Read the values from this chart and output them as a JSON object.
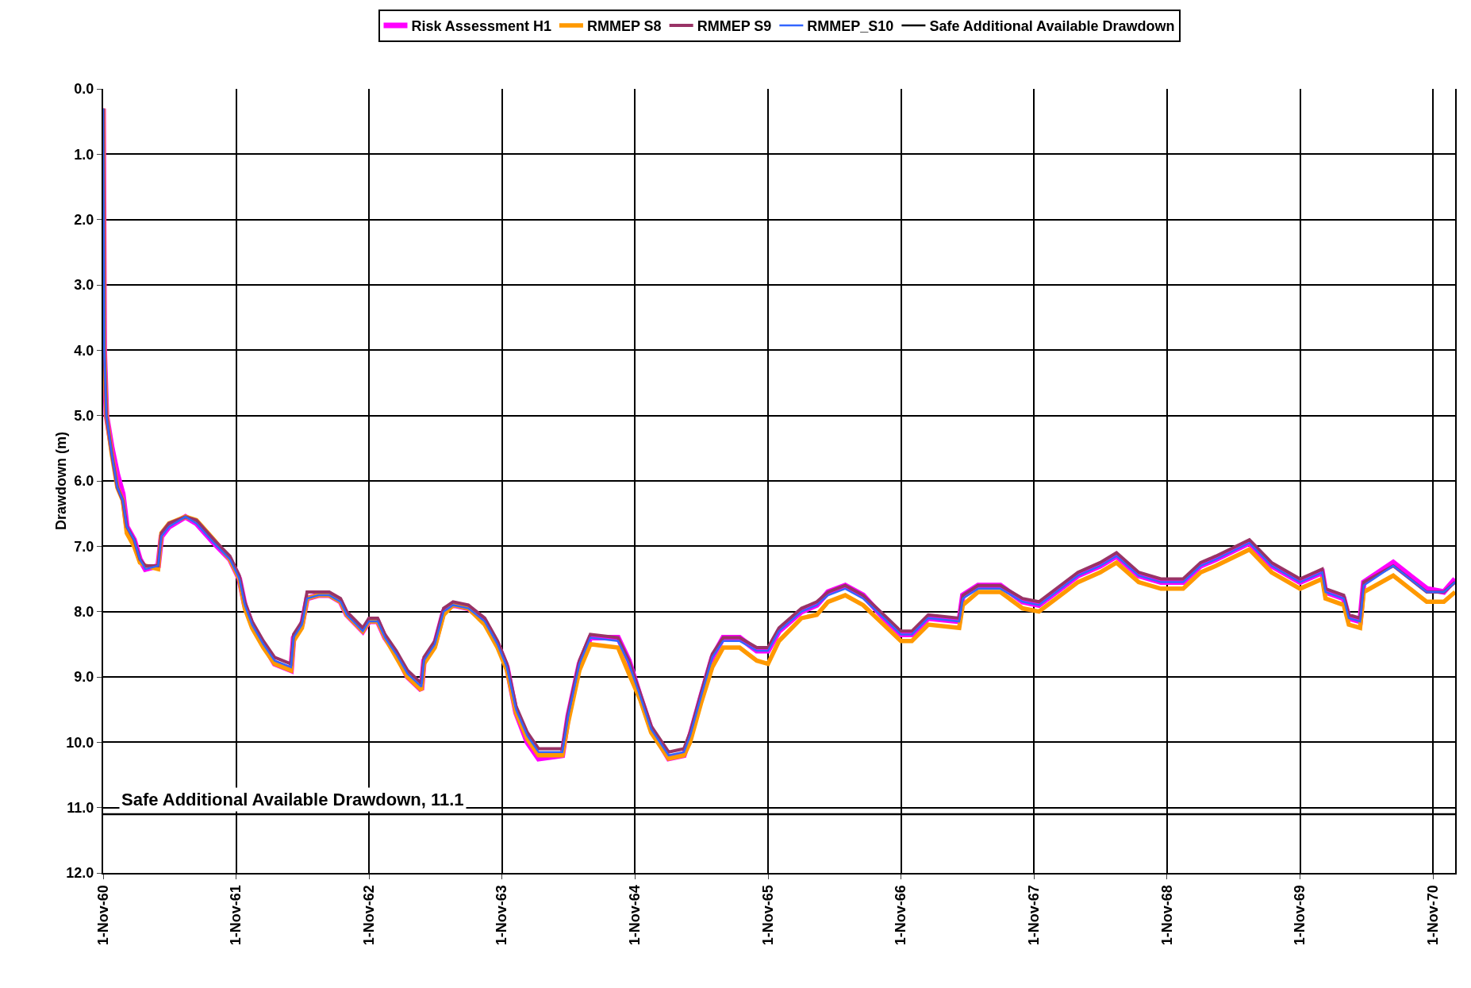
{
  "chart_data": {
    "type": "line",
    "ylabel": "Drawdown (m)",
    "x": [
      "1960-11-01",
      "1960-11-04",
      "1960-11-10",
      "1960-11-25",
      "1960-12-10",
      "1960-12-25",
      "1961-01-05",
      "1961-01-25",
      "1961-02-10",
      "1961-02-25",
      "1961-04-01",
      "1961-04-10",
      "1961-05-01",
      "1961-06-15",
      "1961-07-15",
      "1961-09-01",
      "1961-10-15",
      "1961-11-10",
      "1961-11-25",
      "1961-12-15",
      "1962-01-15",
      "1962-02-15",
      "1962-04-01",
      "1962-04-08",
      "1962-05-01",
      "1962-05-15",
      "1962-06-15",
      "1962-07-15",
      "1962-08-15",
      "1962-09-01",
      "1962-10-15",
      "1962-11-01",
      "1962-11-25",
      "1962-12-15",
      "1963-01-15",
      "1963-02-15",
      "1963-03-25",
      "1963-04-01",
      "1963-05-01",
      "1963-05-25",
      "1963-06-20",
      "1963-08-01",
      "1963-09-15",
      "1963-10-20",
      "1963-11-15",
      "1963-12-10",
      "1964-01-10",
      "1964-02-10",
      "1964-04-15",
      "1964-05-01",
      "1964-06-01",
      "1964-07-01",
      "1964-09-15",
      "1964-10-15",
      "1964-11-15",
      "1964-12-15",
      "1965-02-01",
      "1965-03-15",
      "1965-04-01",
      "1965-05-01",
      "1965-06-01",
      "1965-07-01",
      "1965-08-15",
      "1965-10-01",
      "1965-11-01",
      "1965-12-01",
      "1966-02-01",
      "1966-03-15",
      "1966-04-15",
      "1966-06-01",
      "1966-07-20",
      "1966-09-15",
      "1966-11-01",
      "1966-12-01",
      "1967-01-15",
      "1967-04-10",
      "1967-04-20",
      "1967-06-01",
      "1967-08-01",
      "1967-10-01",
      "1967-11-15",
      "1968-03-01",
      "1968-05-01",
      "1968-06-15",
      "1968-08-15",
      "1968-10-15",
      "1968-12-15",
      "1969-02-01",
      "1969-03-15",
      "1969-06-15",
      "1969-08-15",
      "1969-11-01",
      "1970-01-01",
      "1970-01-10",
      "1970-03-01",
      "1970-03-15",
      "1970-04-15",
      "1970-04-25",
      "1970-07-15",
      "1970-10-15",
      "1970-12-01",
      "1971-01-01"
    ],
    "series": [
      {
        "name": "Risk Assessment H1",
        "color": "#ff00ff",
        "values": [
          0.3,
          4.0,
          5.0,
          5.5,
          5.9,
          6.2,
          6.7,
          6.9,
          7.2,
          7.35,
          7.3,
          6.85,
          6.7,
          6.55,
          6.65,
          6.95,
          7.2,
          7.5,
          7.9,
          8.2,
          8.5,
          8.8,
          8.9,
          8.4,
          8.2,
          7.8,
          7.75,
          7.75,
          7.85,
          8.05,
          8.3,
          8.15,
          8.15,
          8.4,
          8.65,
          9.0,
          9.2,
          8.75,
          8.5,
          8.0,
          7.9,
          7.95,
          8.15,
          8.5,
          8.85,
          9.55,
          10.0,
          10.25,
          10.2,
          9.6,
          8.8,
          8.4,
          8.4,
          8.75,
          9.3,
          9.8,
          10.25,
          10.2,
          9.9,
          9.3,
          8.7,
          8.4,
          8.4,
          8.6,
          8.6,
          8.3,
          8.0,
          7.9,
          7.7,
          7.6,
          7.75,
          8.1,
          8.35,
          8.35,
          8.1,
          8.15,
          7.75,
          7.6,
          7.6,
          7.85,
          7.9,
          7.45,
          7.3,
          7.15,
          7.45,
          7.55,
          7.55,
          7.3,
          7.2,
          6.95,
          7.3,
          7.55,
          7.4,
          7.7,
          7.8,
          8.1,
          8.15,
          7.55,
          7.25,
          7.65,
          7.7,
          7.5
        ]
      },
      {
        "name": "RMMEP S8",
        "color": "#ff9900",
        "values": [
          0.3,
          4.0,
          5.0,
          5.6,
          6.1,
          6.3,
          6.8,
          7.0,
          7.25,
          7.3,
          7.35,
          6.8,
          6.65,
          6.55,
          6.6,
          6.9,
          7.2,
          7.5,
          7.95,
          8.25,
          8.55,
          8.8,
          8.9,
          8.45,
          8.25,
          7.8,
          7.75,
          7.75,
          7.85,
          8.05,
          8.3,
          8.15,
          8.15,
          8.4,
          8.7,
          9.0,
          9.2,
          8.8,
          8.55,
          8.05,
          7.9,
          7.95,
          8.2,
          8.55,
          8.9,
          9.55,
          9.95,
          10.2,
          10.2,
          9.7,
          8.9,
          8.5,
          8.55,
          8.95,
          9.35,
          9.85,
          10.25,
          10.2,
          10.0,
          9.4,
          8.85,
          8.55,
          8.55,
          8.75,
          8.8,
          8.45,
          8.1,
          8.05,
          7.85,
          7.75,
          7.9,
          8.2,
          8.45,
          8.45,
          8.2,
          8.25,
          7.9,
          7.7,
          7.7,
          7.95,
          8.0,
          7.55,
          7.4,
          7.25,
          7.55,
          7.65,
          7.65,
          7.4,
          7.3,
          7.05,
          7.4,
          7.65,
          7.5,
          7.8,
          7.9,
          8.2,
          8.25,
          7.7,
          7.45,
          7.85,
          7.85,
          7.7
        ]
      },
      {
        "name": "RMMEP S9",
        "color": "#993366",
        "values": [
          0.3,
          4.0,
          5.0,
          5.6,
          6.1,
          6.3,
          6.7,
          6.9,
          7.2,
          7.3,
          7.3,
          6.8,
          6.65,
          6.55,
          6.6,
          6.9,
          7.15,
          7.45,
          7.85,
          8.15,
          8.45,
          8.7,
          8.8,
          8.35,
          8.15,
          7.7,
          7.7,
          7.7,
          7.8,
          8.0,
          8.25,
          8.1,
          8.1,
          8.35,
          8.6,
          8.9,
          9.1,
          8.7,
          8.45,
          7.95,
          7.85,
          7.9,
          8.1,
          8.45,
          8.8,
          9.45,
          9.85,
          10.1,
          10.1,
          9.55,
          8.75,
          8.35,
          8.4,
          8.75,
          9.25,
          9.75,
          10.15,
          10.1,
          9.85,
          9.25,
          8.65,
          8.4,
          8.4,
          8.55,
          8.55,
          8.25,
          7.95,
          7.85,
          7.7,
          7.6,
          7.75,
          8.05,
          8.3,
          8.3,
          8.05,
          8.1,
          7.75,
          7.6,
          7.6,
          7.8,
          7.85,
          7.4,
          7.25,
          7.1,
          7.4,
          7.5,
          7.5,
          7.25,
          7.15,
          6.9,
          7.25,
          7.5,
          7.35,
          7.65,
          7.75,
          8.05,
          8.1,
          7.55,
          7.3,
          7.7,
          7.7,
          7.55
        ]
      },
      {
        "name": "RMMEP_S10",
        "color": "#3366ff",
        "values": [
          0.3,
          4.0,
          5.0,
          5.6,
          6.1,
          6.3,
          6.7,
          6.9,
          7.2,
          7.35,
          7.3,
          6.85,
          6.7,
          6.55,
          6.65,
          6.95,
          7.2,
          7.5,
          7.9,
          8.2,
          8.5,
          8.75,
          8.85,
          8.4,
          8.2,
          7.8,
          7.75,
          7.75,
          7.85,
          8.05,
          8.3,
          8.15,
          8.15,
          8.4,
          8.65,
          8.95,
          9.15,
          8.75,
          8.5,
          8.0,
          7.9,
          7.95,
          8.15,
          8.5,
          8.85,
          9.5,
          9.9,
          10.15,
          10.15,
          9.6,
          8.8,
          8.4,
          8.45,
          8.8,
          9.3,
          9.8,
          10.2,
          10.15,
          9.9,
          9.3,
          8.7,
          8.45,
          8.45,
          8.6,
          8.6,
          8.3,
          8.0,
          7.9,
          7.75,
          7.65,
          7.8,
          8.1,
          8.35,
          8.35,
          8.1,
          8.15,
          7.8,
          7.65,
          7.65,
          7.85,
          7.9,
          7.45,
          7.3,
          7.15,
          7.45,
          7.55,
          7.55,
          7.3,
          7.2,
          6.95,
          7.3,
          7.55,
          7.4,
          7.7,
          7.8,
          8.1,
          8.15,
          7.6,
          7.3,
          7.7,
          7.7,
          7.55
        ]
      },
      {
        "name": "Safe Additional Available Drawdown",
        "color": "#000000",
        "x": [
          "1960-11-01",
          "1971-01-01"
        ],
        "values": [
          11.1,
          11.1
        ]
      }
    ],
    "annotations": [
      {
        "text": "Safe Additional Available Drawdown, 11.1",
        "x": "1960-12-15",
        "y": 11.1
      }
    ],
    "xlim": [
      "1960-11-01",
      "1971-01-01"
    ],
    "xticks": [
      {
        "value": "1960-11-01",
        "label": "1-Nov-60"
      },
      {
        "value": "1961-11-01",
        "label": "1-Nov-61"
      },
      {
        "value": "1962-11-01",
        "label": "1-Nov-62"
      },
      {
        "value": "1963-11-01",
        "label": "1-Nov-63"
      },
      {
        "value": "1964-11-01",
        "label": "1-Nov-64"
      },
      {
        "value": "1965-11-01",
        "label": "1-Nov-65"
      },
      {
        "value": "1966-11-01",
        "label": "1-Nov-66"
      },
      {
        "value": "1967-11-01",
        "label": "1-Nov-67"
      },
      {
        "value": "1968-11-01",
        "label": "1-Nov-68"
      },
      {
        "value": "1969-11-01",
        "label": "1-Nov-69"
      },
      {
        "value": "1970-11-01",
        "label": "1-Nov-70"
      }
    ],
    "ylim": [
      12,
      0
    ],
    "yticks": [
      {
        "value": 0,
        "label": "0.0"
      },
      {
        "value": 1,
        "label": "1.0"
      },
      {
        "value": 2,
        "label": "2.0"
      },
      {
        "value": 3,
        "label": "3.0"
      },
      {
        "value": 4,
        "label": "4.0"
      },
      {
        "value": 5,
        "label": "5.0"
      },
      {
        "value": 6,
        "label": "6.0"
      },
      {
        "value": 7,
        "label": "7.0"
      },
      {
        "value": 8,
        "label": "8.0"
      },
      {
        "value": 9,
        "label": "9.0"
      },
      {
        "value": 10,
        "label": "10.0"
      },
      {
        "value": 11,
        "label": "11.0"
      },
      {
        "value": 12,
        "label": "12.0"
      }
    ],
    "grid": true,
    "legend": "top",
    "marker": "none",
    "line_style": "solid"
  }
}
